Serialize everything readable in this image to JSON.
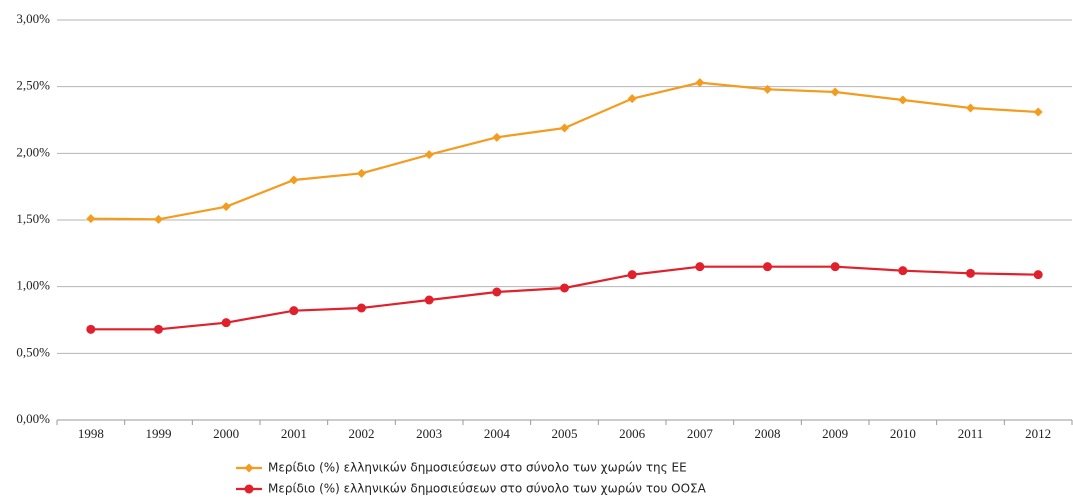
{
  "chart_data": {
    "type": "line",
    "categories": [
      "1998",
      "1999",
      "2000",
      "2001",
      "2002",
      "2003",
      "2004",
      "2005",
      "2006",
      "2007",
      "2008",
      "2009",
      "2010",
      "2011",
      "2012"
    ],
    "series": [
      {
        "name": "Μερίδιο (%) ελληνικών δημοσιεύσεων στο σύνολο των χωρών της ΕΕ",
        "color": "#f39c1f",
        "marker": "diamond",
        "values": [
          1.51,
          1.505,
          1.6,
          1.8,
          1.85,
          1.99,
          2.12,
          2.19,
          2.41,
          2.53,
          2.48,
          2.46,
          2.4,
          2.34,
          2.31
        ]
      },
      {
        "name": "Μερίδιο (%) ελληνικών δημοσιεύσεων στο σύνολο των χωρών του ΟΟΣΑ",
        "color": "#e0202a",
        "marker": "circle",
        "values": [
          0.68,
          0.68,
          0.73,
          0.82,
          0.84,
          0.9,
          0.96,
          0.99,
          1.09,
          1.15,
          1.15,
          1.15,
          1.12,
          1.1,
          1.09
        ]
      }
    ],
    "ylim": [
      0,
      3
    ],
    "yticks": [
      {
        "value": 0,
        "label": "0,00%"
      },
      {
        "value": 0.5,
        "label": "0,50%"
      },
      {
        "value": 1,
        "label": "1,00%"
      },
      {
        "value": 1.5,
        "label": "1,50%"
      },
      {
        "value": 2,
        "label": "2,00%"
      },
      {
        "value": 2.5,
        "label": "2,50%"
      },
      {
        "value": 3,
        "label": "3,00%"
      }
    ],
    "grid": true,
    "legend": "bottom"
  }
}
